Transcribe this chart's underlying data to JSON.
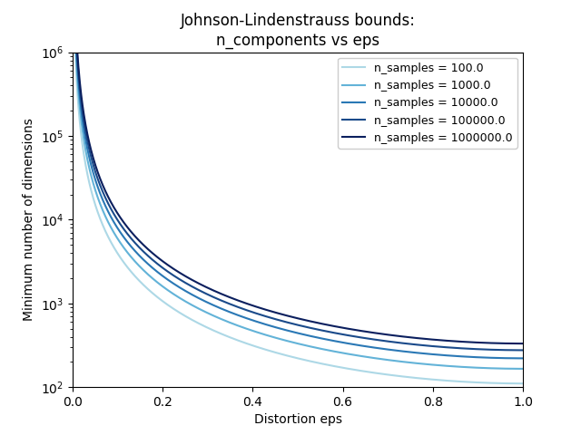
{
  "title": "Johnson-Lindenstrauss bounds:\nn_components vs eps",
  "xlabel": "Distortion eps",
  "ylabel": "Minimum number of dimensions",
  "n_samples": [
    100.0,
    1000.0,
    10000.0,
    100000.0,
    1000000.0
  ],
  "colors": [
    "#add8e6",
    "#63b3d8",
    "#2a78b5",
    "#1a4a8a",
    "#0b1f5e"
  ],
  "eps_min": 0.005,
  "eps_max": 1.0,
  "n_points": 1000,
  "xlim": [
    0.0,
    1.0
  ],
  "ylim_low": 100,
  "ylim_high": 1000000,
  "figwidth": 6.4,
  "figheight": 4.8,
  "dpi": 100
}
